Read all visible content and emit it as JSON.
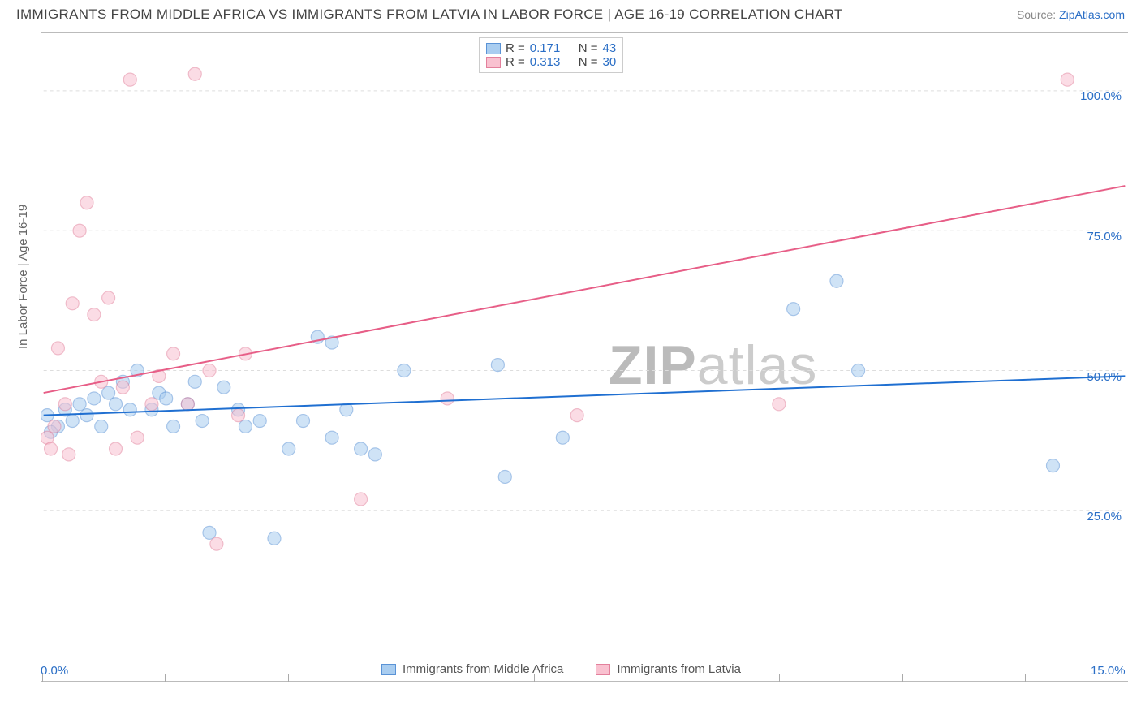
{
  "title": "IMMIGRANTS FROM MIDDLE AFRICA VS IMMIGRANTS FROM LATVIA IN LABOR FORCE | AGE 16-19 CORRELATION CHART",
  "source_prefix": "Source: ",
  "source_link": "ZipAtlas.com",
  "y_axis_label": "In Labor Force | Age 16-19",
  "watermark_bold": "ZIP",
  "watermark_light": "atlas",
  "chart": {
    "type": "scatter",
    "background_color": "#ffffff",
    "grid_color": "#dddddd",
    "xlim": [
      0,
      15
    ],
    "ylim": [
      0,
      110
    ],
    "x_tick_positions": [
      0,
      1.7,
      3.4,
      5.1,
      6.8,
      8.5,
      10.2,
      11.9,
      13.6,
      15.3
    ],
    "x_tick_labels_visible": {
      "0": "0.0%",
      "15": "15.0%"
    },
    "y_gridlines": [
      25,
      50,
      75,
      100
    ],
    "y_tick_labels": {
      "25": "25.0%",
      "50": "50.0%",
      "75": "75.0%",
      "100": "100.0%"
    },
    "marker_radius": 8,
    "marker_opacity": 0.55,
    "line_width": 2
  },
  "series": [
    {
      "name": "Immigrants from Middle Africa",
      "color": "#6fa8e6",
      "fill": "#a9cdf0",
      "stroke": "#5a93d6",
      "r_label": "R =",
      "r_value": "0.171",
      "n_label": "N =",
      "n_value": "43",
      "trend": {
        "x1": 0,
        "y1": 42,
        "x2": 15,
        "y2": 49,
        "color": "#1f6fd1"
      },
      "points": [
        [
          0.05,
          42
        ],
        [
          0.2,
          40
        ],
        [
          0.3,
          43
        ],
        [
          0.4,
          41
        ],
        [
          0.5,
          44
        ],
        [
          0.6,
          42
        ],
        [
          0.7,
          45
        ],
        [
          0.8,
          40
        ],
        [
          0.9,
          46
        ],
        [
          1.0,
          44
        ],
        [
          1.1,
          48
        ],
        [
          1.2,
          43
        ],
        [
          1.3,
          50
        ],
        [
          1.5,
          43
        ],
        [
          1.6,
          46
        ],
        [
          1.7,
          45
        ],
        [
          1.8,
          40
        ],
        [
          2.0,
          44
        ],
        [
          2.1,
          48
        ],
        [
          2.2,
          41
        ],
        [
          2.3,
          21
        ],
        [
          2.5,
          47
        ],
        [
          2.7,
          43
        ],
        [
          2.8,
          40
        ],
        [
          3.0,
          41
        ],
        [
          3.2,
          20
        ],
        [
          3.4,
          36
        ],
        [
          3.6,
          41
        ],
        [
          3.8,
          56
        ],
        [
          4.0,
          55
        ],
        [
          4.0,
          38
        ],
        [
          4.2,
          43
        ],
        [
          4.4,
          36
        ],
        [
          4.6,
          35
        ],
        [
          5.0,
          50
        ],
        [
          6.3,
          51
        ],
        [
          6.4,
          31
        ],
        [
          7.2,
          38
        ],
        [
          10.4,
          61
        ],
        [
          11.0,
          66
        ],
        [
          11.3,
          50
        ],
        [
          14.0,
          33
        ],
        [
          0.1,
          39
        ]
      ]
    },
    {
      "name": "Immigrants from Latvia",
      "color": "#f191ac",
      "fill": "#f9c1d0",
      "stroke": "#e3809c",
      "r_label": "R =",
      "r_value": "0.313",
      "n_label": "N =",
      "n_value": "30",
      "trend": {
        "x1": 0,
        "y1": 46,
        "x2": 15,
        "y2": 83,
        "color": "#e75e87"
      },
      "points": [
        [
          0.05,
          38
        ],
        [
          0.1,
          36
        ],
        [
          0.15,
          40
        ],
        [
          0.2,
          54
        ],
        [
          0.3,
          44
        ],
        [
          0.35,
          35
        ],
        [
          0.4,
          62
        ],
        [
          0.5,
          75
        ],
        [
          0.6,
          80
        ],
        [
          0.7,
          60
        ],
        [
          0.8,
          48
        ],
        [
          0.9,
          63
        ],
        [
          1.0,
          36
        ],
        [
          1.1,
          47
        ],
        [
          1.2,
          102
        ],
        [
          1.3,
          38
        ],
        [
          1.5,
          44
        ],
        [
          1.6,
          49
        ],
        [
          1.8,
          53
        ],
        [
          2.0,
          44
        ],
        [
          2.1,
          103
        ],
        [
          2.3,
          50
        ],
        [
          2.4,
          19
        ],
        [
          2.7,
          42
        ],
        [
          2.8,
          53
        ],
        [
          4.4,
          27
        ],
        [
          5.6,
          45
        ],
        [
          7.4,
          42
        ],
        [
          10.2,
          44
        ],
        [
          14.2,
          102
        ]
      ]
    }
  ]
}
